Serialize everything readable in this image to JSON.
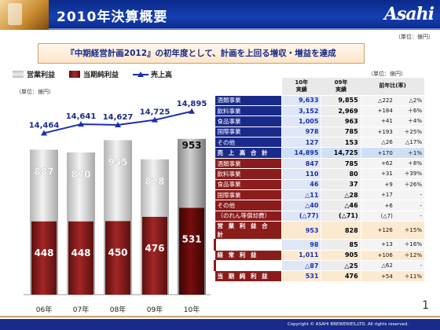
{
  "header": {
    "title": "2010年決算概要",
    "logo": "Asahi"
  },
  "unit_top": "（単位：億円）",
  "banner": "『中期経営計画2012』の初年度として、計画を上回る増収・増益を達成",
  "legend": {
    "operating": "営業利益",
    "net": "当期純利益",
    "sales": "売上高",
    "colors": {
      "operating": "#d8d8d8",
      "net": "#8a1c1c",
      "sales": "#1a2fb0"
    }
  },
  "chart_unit": "（単位：億円）",
  "chart_data": {
    "type": "bar",
    "categories": [
      "06年",
      "07年",
      "08年",
      "09年",
      "10年"
    ],
    "series": [
      {
        "name": "営業利益",
        "values": [
          887,
          870,
          945,
          828,
          953
        ]
      },
      {
        "name": "当期純利益",
        "values": [
          448,
          448,
          450,
          476,
          531
        ]
      },
      {
        "name": "売上高",
        "type": "line",
        "values": [
          14464,
          14641,
          14627,
          14725,
          14895
        ]
      }
    ],
    "value_labels": {
      "operating": [
        "887",
        "870",
        "945",
        "828",
        "953"
      ],
      "net": [
        "448",
        "448",
        "450",
        "476",
        "531"
      ],
      "sales": [
        "14,464",
        "14,641",
        "14,627",
        "14,725",
        "14,895"
      ]
    }
  },
  "table_unit": "（単位：億円）",
  "table": {
    "headers": {
      "y10": "10年\n実績",
      "y09": "09年\n実績",
      "yoy": "前年比(率)"
    },
    "sales_rows": [
      {
        "label": "酒類事業",
        "v10": "9,633",
        "v09": "9,855",
        "d": "△222",
        "p": "△2%"
      },
      {
        "label": "飲料事業",
        "v10": "3,152",
        "v09": "2,969",
        "d": "+184",
        "p": "＋6%"
      },
      {
        "label": "食品事業",
        "v10": "1,005",
        "v09": "963",
        "d": "+41",
        "p": "＋4%"
      },
      {
        "label": "国際事業",
        "v10": "978",
        "v09": "785",
        "d": "+193",
        "p": "＋25%"
      },
      {
        "label": "その他",
        "v10": "127",
        "v09": "153",
        "d": "△26",
        "p": "△17%"
      }
    ],
    "sales_total": {
      "label": "売 上 高 合 計",
      "v10": "14,895",
      "v09": "14,725",
      "d": "+170",
      "p": "＋1%"
    },
    "op_rows": [
      {
        "label": "酒類事業",
        "v10": "847",
        "v09": "785",
        "d": "+62",
        "p": "＋8%"
      },
      {
        "label": "飲料事業",
        "v10": "110",
        "v09": "80",
        "d": "+31",
        "p": "＋39%"
      },
      {
        "label": "食品事業",
        "v10": "46",
        "v09": "37",
        "d": "+9",
        "p": "＋26%"
      },
      {
        "label": "国際事業",
        "v10": "△11",
        "v09": "△28",
        "d": "+17",
        "p": "-"
      },
      {
        "label": "その他",
        "v10": "△40",
        "v09": "△46",
        "d": "+6",
        "p": "-"
      },
      {
        "label": "（のれん等償却費）",
        "v10": "(△77)",
        "v09": "(△71)",
        "d": "(△7)",
        "p": "-"
      }
    ],
    "op_total": {
      "label": "営 業 利 益 合 計",
      "v10": "953",
      "v09": "828",
      "d": "+126",
      "p": "＋15%"
    },
    "nonop": {
      "label": "持分法損益",
      "v10": "98",
      "v09": "85",
      "d": "+13",
      "p": "＋16%"
    },
    "ordinary": {
      "label": "経 常 利 益",
      "v10": "1,011",
      "v09": "905",
      "d": "+106",
      "p": "＋12%"
    },
    "extra": {
      "label": "特別損益",
      "v10": "△87",
      "v09": "△25",
      "d": "△62",
      "p": "-"
    },
    "net": {
      "label": "当 期 純 利 益",
      "v10": "531",
      "v09": "476",
      "d": "+54",
      "p": "＋11%"
    }
  },
  "page_number": "1",
  "footer": "Copyright © ASAHI BREWERIES,LTD. All rights reserved."
}
